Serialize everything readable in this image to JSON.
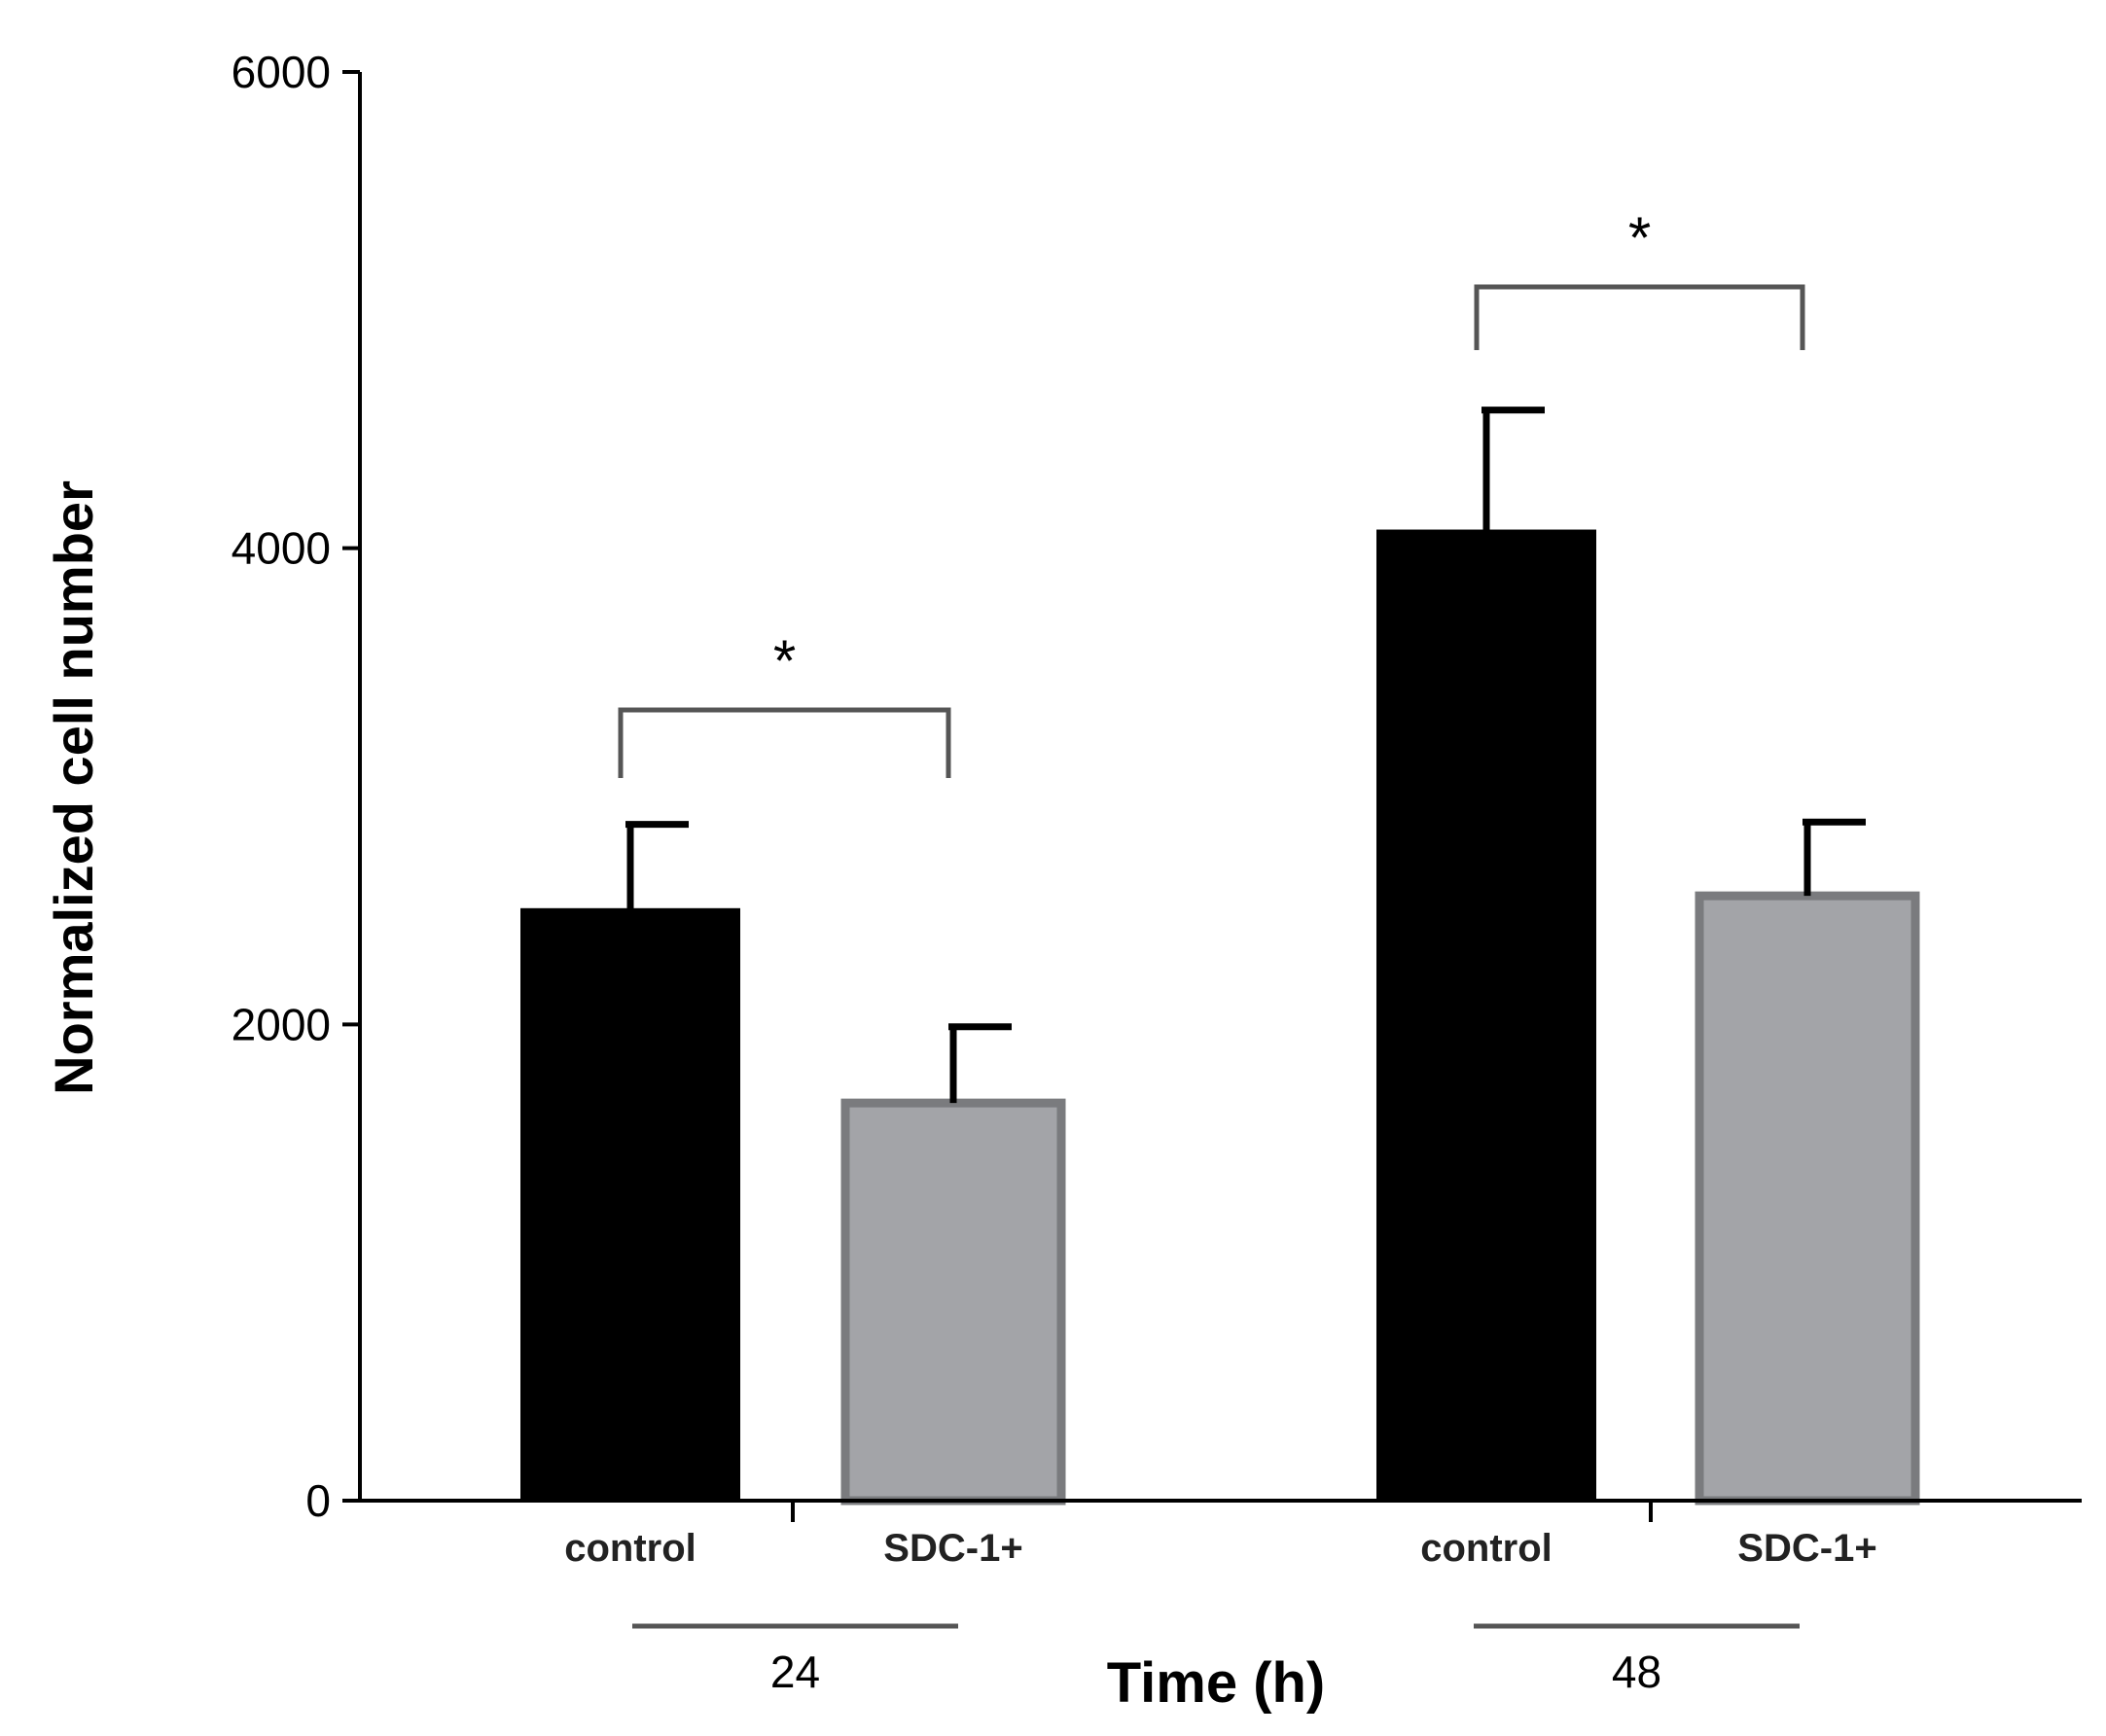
{
  "chart_data": {
    "type": "bar",
    "title": "",
    "ylabel": "Normalized cell number",
    "xlabel": "Time (h)",
    "ylim": [
      0,
      6000
    ],
    "yticks": [
      "0",
      "2000",
      "4000",
      "6000"
    ],
    "groups": [
      {
        "label": "24",
        "bars": [
          {
            "category": "control",
            "value": 2480,
            "error": 360,
            "color": "#000000"
          },
          {
            "category": "SDC-1+",
            "value": 1670,
            "error": 320,
            "color": "#a3a4a8"
          }
        ],
        "significance": "*"
      },
      {
        "label": "48",
        "bars": [
          {
            "category": "control",
            "value": 4070,
            "error": 510,
            "color": "#000000"
          },
          {
            "category": "SDC-1+",
            "value": 2540,
            "error": 310,
            "color": "#a3a4a8"
          }
        ],
        "significance": "*"
      }
    ]
  }
}
